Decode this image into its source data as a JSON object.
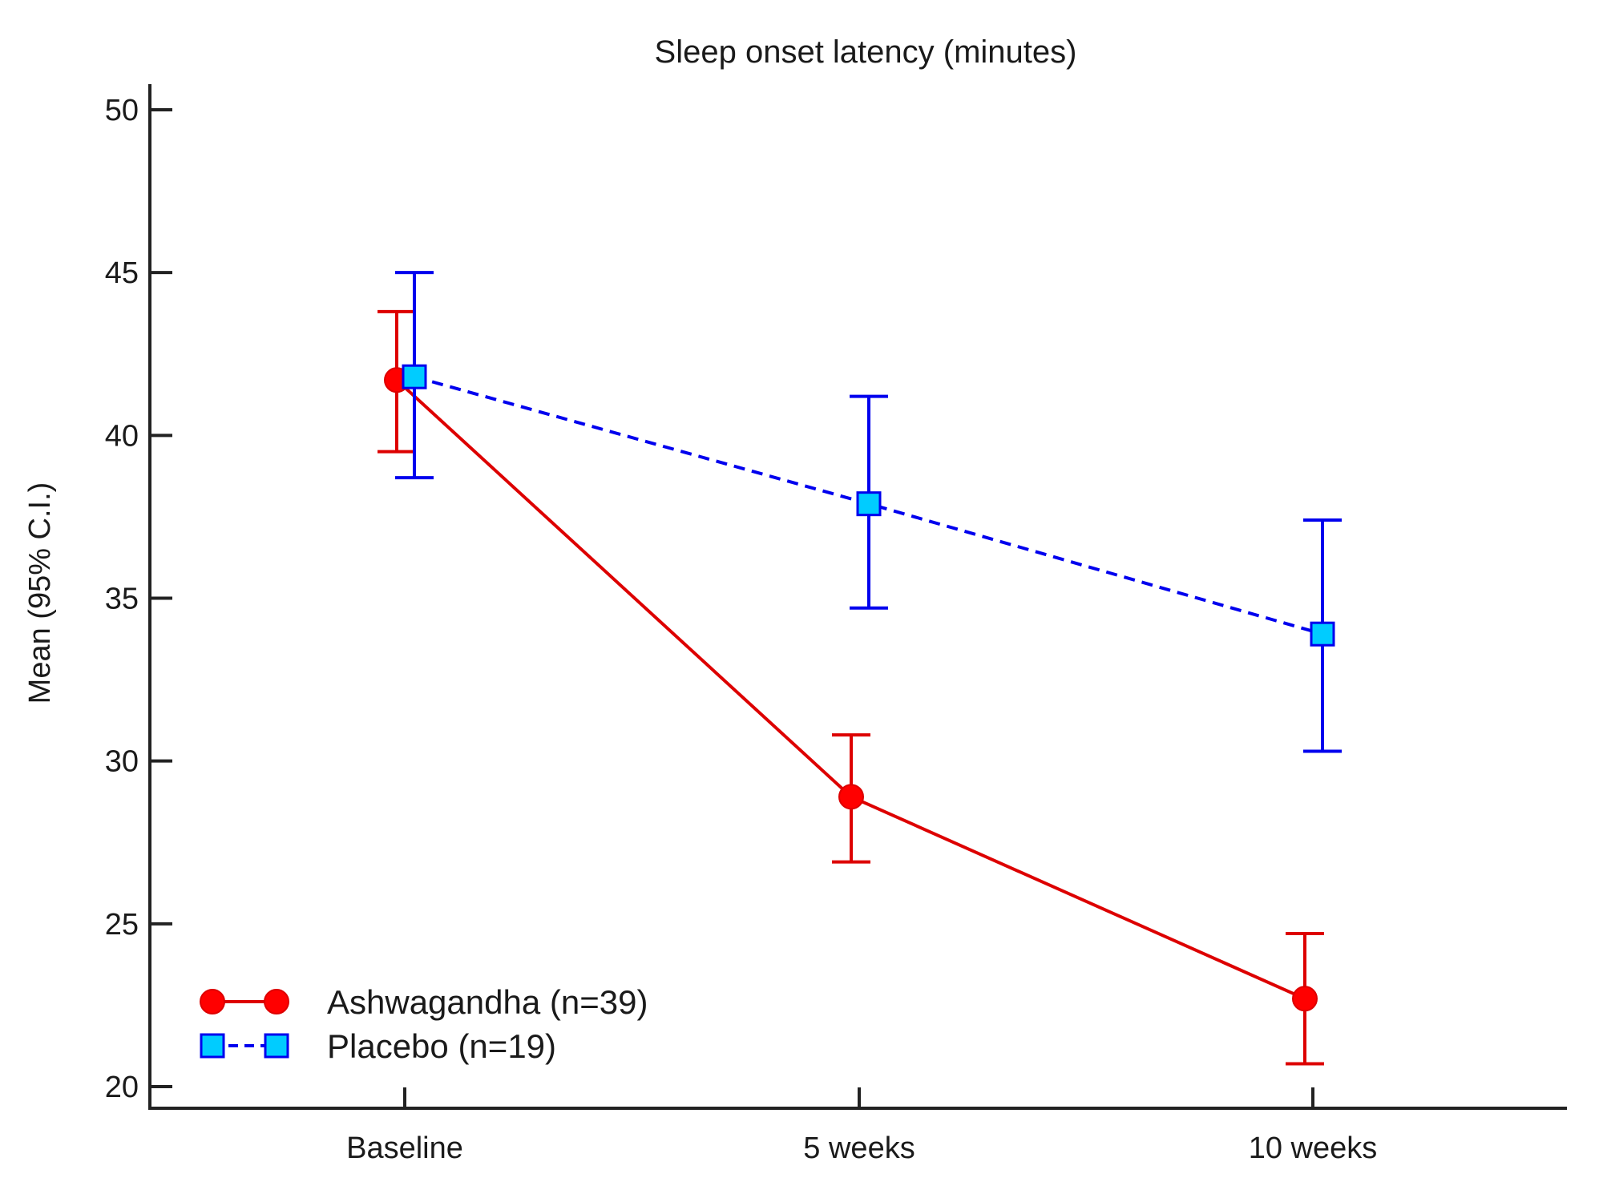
{
  "chart_data": {
    "type": "line",
    "title": "Sleep onset latency (minutes)",
    "xlabel": "",
    "ylabel": "Mean (95% C.I.)",
    "categories": [
      "Baseline",
      "5 weeks",
      "10 weeks"
    ],
    "ylim": [
      20,
      50
    ],
    "yticks": [
      20,
      25,
      30,
      35,
      40,
      45,
      50
    ],
    "grid": false,
    "legend_position": "bottom-left",
    "series": [
      {
        "name": "Ashwagandha (n=39)",
        "color": "#dd0000",
        "marker_fill": "#ff0000",
        "marker": "circle",
        "line_style": "solid",
        "values": [
          41.7,
          28.9,
          22.7
        ],
        "ci_low": [
          39.5,
          26.9,
          20.7
        ],
        "ci_high": [
          43.8,
          30.8,
          24.7
        ]
      },
      {
        "name": "Placebo (n=19)",
        "color": "#0000ee",
        "marker_fill": "#00ccff",
        "marker": "square",
        "line_style": "dashed",
        "values": [
          41.8,
          37.9,
          33.9
        ],
        "ci_low": [
          38.7,
          34.7,
          30.3
        ],
        "ci_high": [
          45.0,
          41.2,
          37.4
        ]
      }
    ]
  }
}
